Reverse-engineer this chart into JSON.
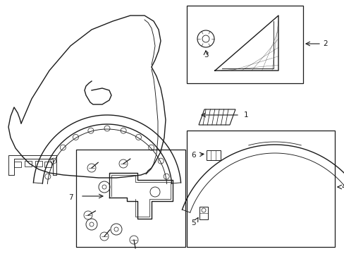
{
  "bg_color": "#ffffff",
  "line_color": "#1a1a1a",
  "lw_main": 1.0,
  "lw_thin": 0.65,
  "label_fontsize": 7.5,
  "fig_w": 4.89,
  "fig_h": 3.6,
  "dpi": 100
}
